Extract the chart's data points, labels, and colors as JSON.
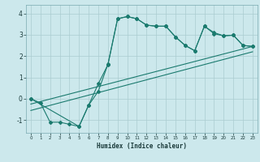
{
  "xlabel": "Humidex (Indice chaleur)",
  "bg_color": "#cce8ec",
  "grid_color": "#aaccd0",
  "line_color": "#1a7a6e",
  "xlim": [
    -0.5,
    23.5
  ],
  "ylim": [
    -1.6,
    4.4
  ],
  "yticks": [
    -1,
    0,
    1,
    2,
    3,
    4
  ],
  "xticks": [
    0,
    1,
    2,
    3,
    4,
    5,
    6,
    7,
    8,
    9,
    10,
    11,
    12,
    13,
    14,
    15,
    16,
    17,
    18,
    19,
    20,
    21,
    22,
    23
  ],
  "line1_x": [
    0,
    1,
    2,
    3,
    4,
    5,
    6,
    7,
    8,
    9,
    10,
    11,
    12,
    13,
    14,
    15,
    16,
    17,
    18,
    19,
    20,
    21,
    22,
    23
  ],
  "line1_y": [
    0.0,
    -0.2,
    -1.1,
    -1.1,
    -1.2,
    -1.3,
    -0.3,
    0.7,
    1.6,
    3.75,
    3.85,
    3.75,
    3.45,
    3.4,
    3.4,
    2.9,
    2.5,
    2.25,
    3.4,
    3.1,
    2.95,
    2.98,
    2.5,
    2.45
  ],
  "line2_x": [
    0,
    5,
    6,
    7,
    8,
    9,
    10,
    11,
    12,
    13,
    14,
    15,
    16,
    17,
    18,
    19,
    20,
    21,
    22,
    23
  ],
  "line2_y": [
    0.0,
    -1.3,
    -0.3,
    0.35,
    1.62,
    3.75,
    3.85,
    3.75,
    3.45,
    3.4,
    3.4,
    2.9,
    2.5,
    2.25,
    3.4,
    3.05,
    2.95,
    2.98,
    2.5,
    2.45
  ],
  "line3_x": [
    0,
    23
  ],
  "line3_y": [
    -0.25,
    2.45
  ],
  "line4_x": [
    0,
    23
  ],
  "line4_y": [
    -0.55,
    2.2
  ]
}
